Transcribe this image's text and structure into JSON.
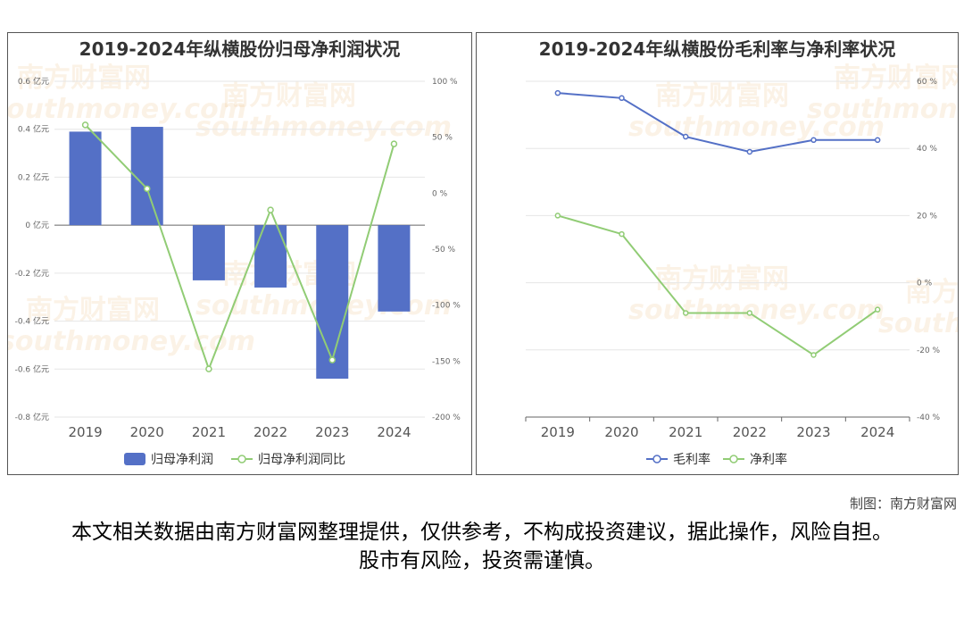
{
  "watermark": {
    "brand": "南方财富网",
    "domain": "southmoney.com"
  },
  "charts": {
    "left": {
      "title": "2019-2024年纵横股份归母净利润状况",
      "legend": [
        "归母净利润",
        "归母净利润同比"
      ]
    },
    "right": {
      "title": "2019-2024年纵横股份毛利率与净利率状况",
      "legend": [
        "毛利率",
        "净利率"
      ]
    }
  },
  "chart_data": [
    {
      "type": "bar",
      "title": "2019-2024年纵横股份归母净利润状况",
      "categories": [
        "2019",
        "2020",
        "2021",
        "2022",
        "2023",
        "2024"
      ],
      "series": [
        {
          "name": "归母净利润",
          "type": "bar",
          "axis": "left",
          "values": [
            0.39,
            0.41,
            -0.23,
            -0.26,
            -0.64,
            -0.36
          ],
          "color": "#5470c6"
        },
        {
          "name": "归母净利润同比",
          "type": "line",
          "axis": "right",
          "values": [
            61,
            4,
            -157,
            -15,
            -149,
            44
          ],
          "color": "#91cc75"
        }
      ],
      "y_left": {
        "ticks": [
          0.6,
          0.4,
          0.2,
          0,
          -0.2,
          -0.4,
          -0.6,
          -0.8
        ],
        "tick_labels": [
          "0.6 亿元",
          "0.4 亿元",
          "0.2 亿元",
          "0 亿元",
          "-0.2 亿元",
          "-0.4 亿元",
          "-0.6 亿元",
          "-0.8 亿元"
        ],
        "ylim": [
          -0.8,
          0.6
        ]
      },
      "y_right": {
        "ticks": [
          100,
          50,
          0,
          -50,
          -100,
          -150,
          -200
        ],
        "tick_labels": [
          "100 %",
          "50 %",
          "0 %",
          "-50 %",
          "-100 %",
          "-150 %",
          "-200 %"
        ],
        "ylim": [
          -200,
          100
        ]
      },
      "grid": true,
      "legend_position": "bottom-center"
    },
    {
      "type": "line",
      "title": "2019-2024年纵横股份毛利率与净利率状况",
      "categories": [
        "2019",
        "2020",
        "2021",
        "2022",
        "2023",
        "2024"
      ],
      "series": [
        {
          "name": "毛利率",
          "values": [
            56.5,
            55,
            43.5,
            39,
            42.5,
            42.5
          ],
          "color": "#5470c6"
        },
        {
          "name": "净利率",
          "values": [
            20,
            14.5,
            -9,
            -9,
            -21.5,
            -8
          ],
          "color": "#91cc75"
        }
      ],
      "y_right": {
        "ticks": [
          60,
          40,
          20,
          0,
          -20,
          -40
        ],
        "tick_labels": [
          "60 %",
          "40 %",
          "20 %",
          "0 %",
          "-20 %",
          "-40 %"
        ],
        "ylim": [
          -40,
          60
        ]
      },
      "grid": true,
      "legend_position": "bottom-center"
    }
  ],
  "footer": {
    "credit": "制图：南方财富网",
    "disclaimer": "本文相关数据由南方财富网整理提供，仅供参考，不构成投资建议，据此操作，风险自担。股市有风险，投资需谨慎。"
  }
}
